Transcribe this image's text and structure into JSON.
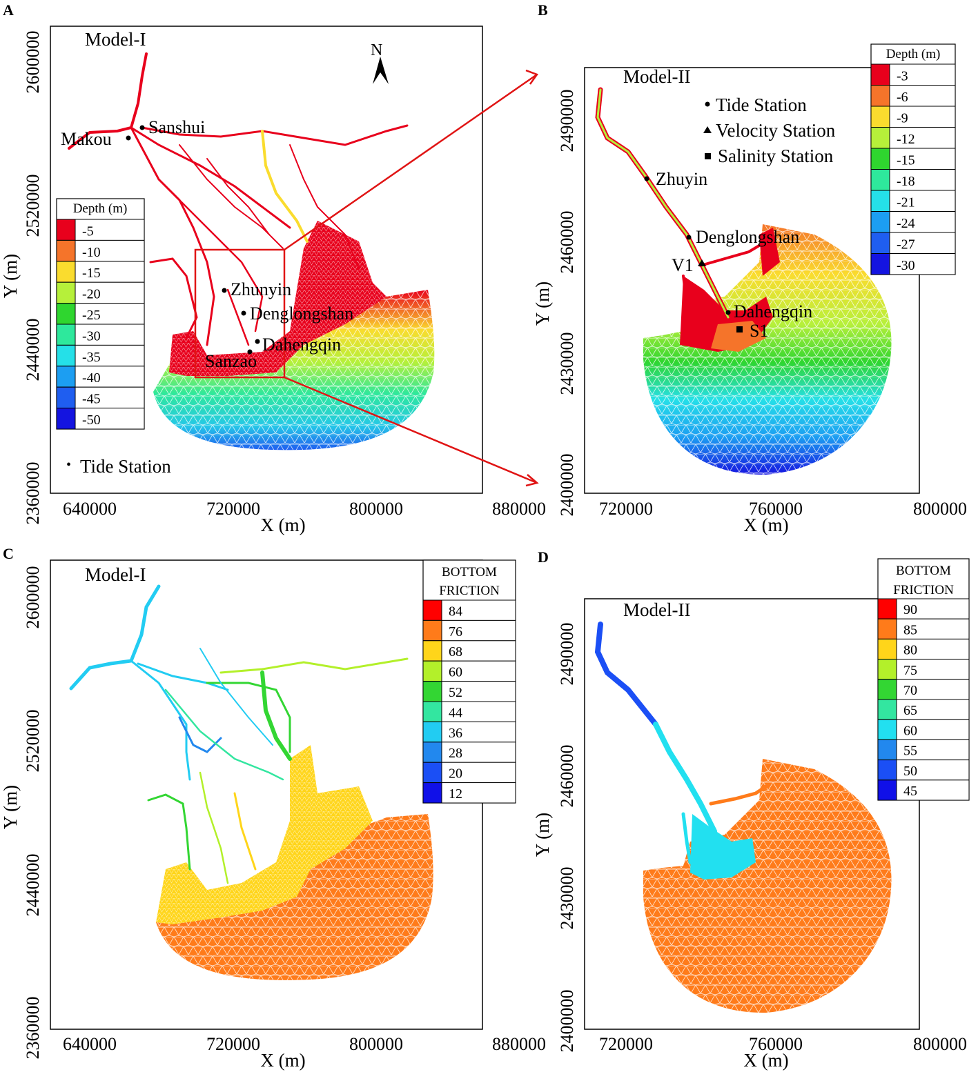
{
  "colors": {
    "depth_scale": [
      "#e8001c",
      "#f5742a",
      "#fadc2e",
      "#b6f03a",
      "#2fd62f",
      "#2ee89c",
      "#25e0e8",
      "#1c9ef2",
      "#1f5ef0",
      "#1414e0"
    ],
    "friction_a": [
      "#ff0000",
      "#ff7b1a",
      "#ffd51a",
      "#b3f02a",
      "#33d633",
      "#33e6a0",
      "#22ccf2",
      "#2288ee",
      "#1b4ff5",
      "#1010e8"
    ],
    "friction_b": [
      "#ff0000",
      "#ff7b1a",
      "#ffd51a",
      "#b3f02a",
      "#33d633",
      "#33e6a0",
      "#22e0f0",
      "#2288ee",
      "#1b4ff5",
      "#1010e8"
    ],
    "pointer": "#e01414"
  },
  "panels": [
    {
      "letter": "A",
      "model": "Model-I",
      "xlabel": "X (m)",
      "ylabel": "Y (m)",
      "xticks": [
        "640000",
        "720000",
        "800000",
        "880000"
      ],
      "yticks": [
        "2600000",
        "2520000",
        "2440000",
        "2360000"
      ],
      "north": "N",
      "legend_title": "Depth (m)",
      "legend_values": [
        "-5",
        "-10",
        "-15",
        "-20",
        "-25",
        "-30",
        "-35",
        "-40",
        "-45",
        "-50"
      ],
      "station_legend": [
        "Tide Station"
      ],
      "stations": [
        "Makou",
        "Sanshui",
        "Zhunyin",
        "Denglongshan",
        "Dahengqin",
        "Sanzao"
      ]
    },
    {
      "letter": "B",
      "model": "Model-II",
      "xlabel": "X (m)",
      "ylabel": "Y (m)",
      "xticks": [
        "720000",
        "760000",
        "800000"
      ],
      "yticks": [
        "2490000",
        "2460000",
        "2430000",
        "2400000"
      ],
      "legend_title": "Depth (m)",
      "legend_values": [
        "-3",
        "-6",
        "-9",
        "-12",
        "-15",
        "-18",
        "-21",
        "-24",
        "-27",
        "-30"
      ],
      "station_legend": [
        "Tide Station",
        "Velocity Station",
        "Salinity Station"
      ],
      "stations": [
        "Zhuyin",
        "Denglongshan",
        "V1",
        "Dahengqin",
        "S1"
      ]
    },
    {
      "letter": "C",
      "model": "Model-I",
      "xlabel": "X (m)",
      "ylabel": "Y (m)",
      "xticks": [
        "640000",
        "720000",
        "800000",
        "880000"
      ],
      "yticks": [
        "2600000",
        "2520000",
        "2440000",
        "2360000"
      ],
      "legend_title_1": "BOTTOM",
      "legend_title_2": "FRICTION",
      "legend_values": [
        "84",
        "76",
        "68",
        "60",
        "52",
        "44",
        "36",
        "28",
        "20",
        "12"
      ]
    },
    {
      "letter": "D",
      "model": "Model-II",
      "xlabel": "X (m)",
      "ylabel": "Y (m)",
      "xticks": [
        "720000",
        "760000",
        "800000"
      ],
      "yticks": [
        "2490000",
        "2460000",
        "2430000",
        "2400000"
      ],
      "legend_title_1": "BOTTOM",
      "legend_title_2": "FRICTION",
      "legend_values": [
        "90",
        "85",
        "80",
        "75",
        "70",
        "65",
        "60",
        "55",
        "50",
        "45"
      ]
    }
  ]
}
